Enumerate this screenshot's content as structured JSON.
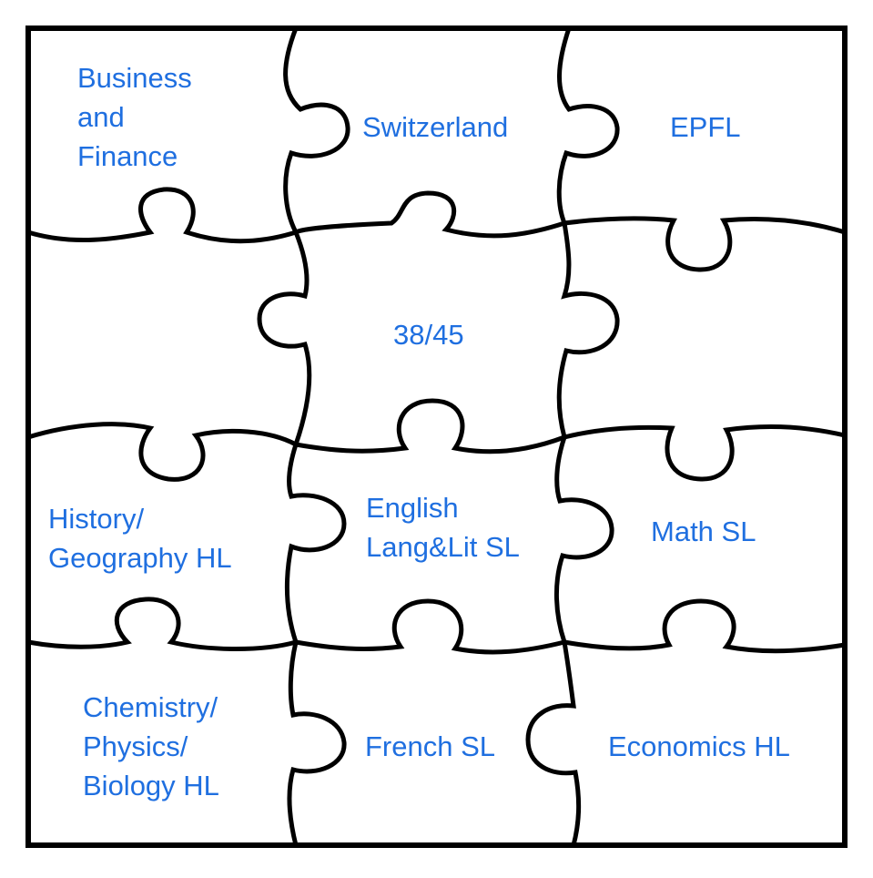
{
  "colors": {
    "text": "#1f6fe0",
    "outline": "#000000",
    "background": "#ffffff"
  },
  "pieces": {
    "top_left": "Business\nand\nFinance",
    "top_center": "Switzerland",
    "top_right": "EPFL",
    "middle_center": "38/45",
    "row3_left": "History/\nGeography HL",
    "row3_center": "English\nLang&Lit SL",
    "row3_right": "Math SL",
    "bottom_left": "Chemistry/\nPhysics/\nBiology HL",
    "bottom_center": "French SL",
    "bottom_right": "Economics HL"
  }
}
